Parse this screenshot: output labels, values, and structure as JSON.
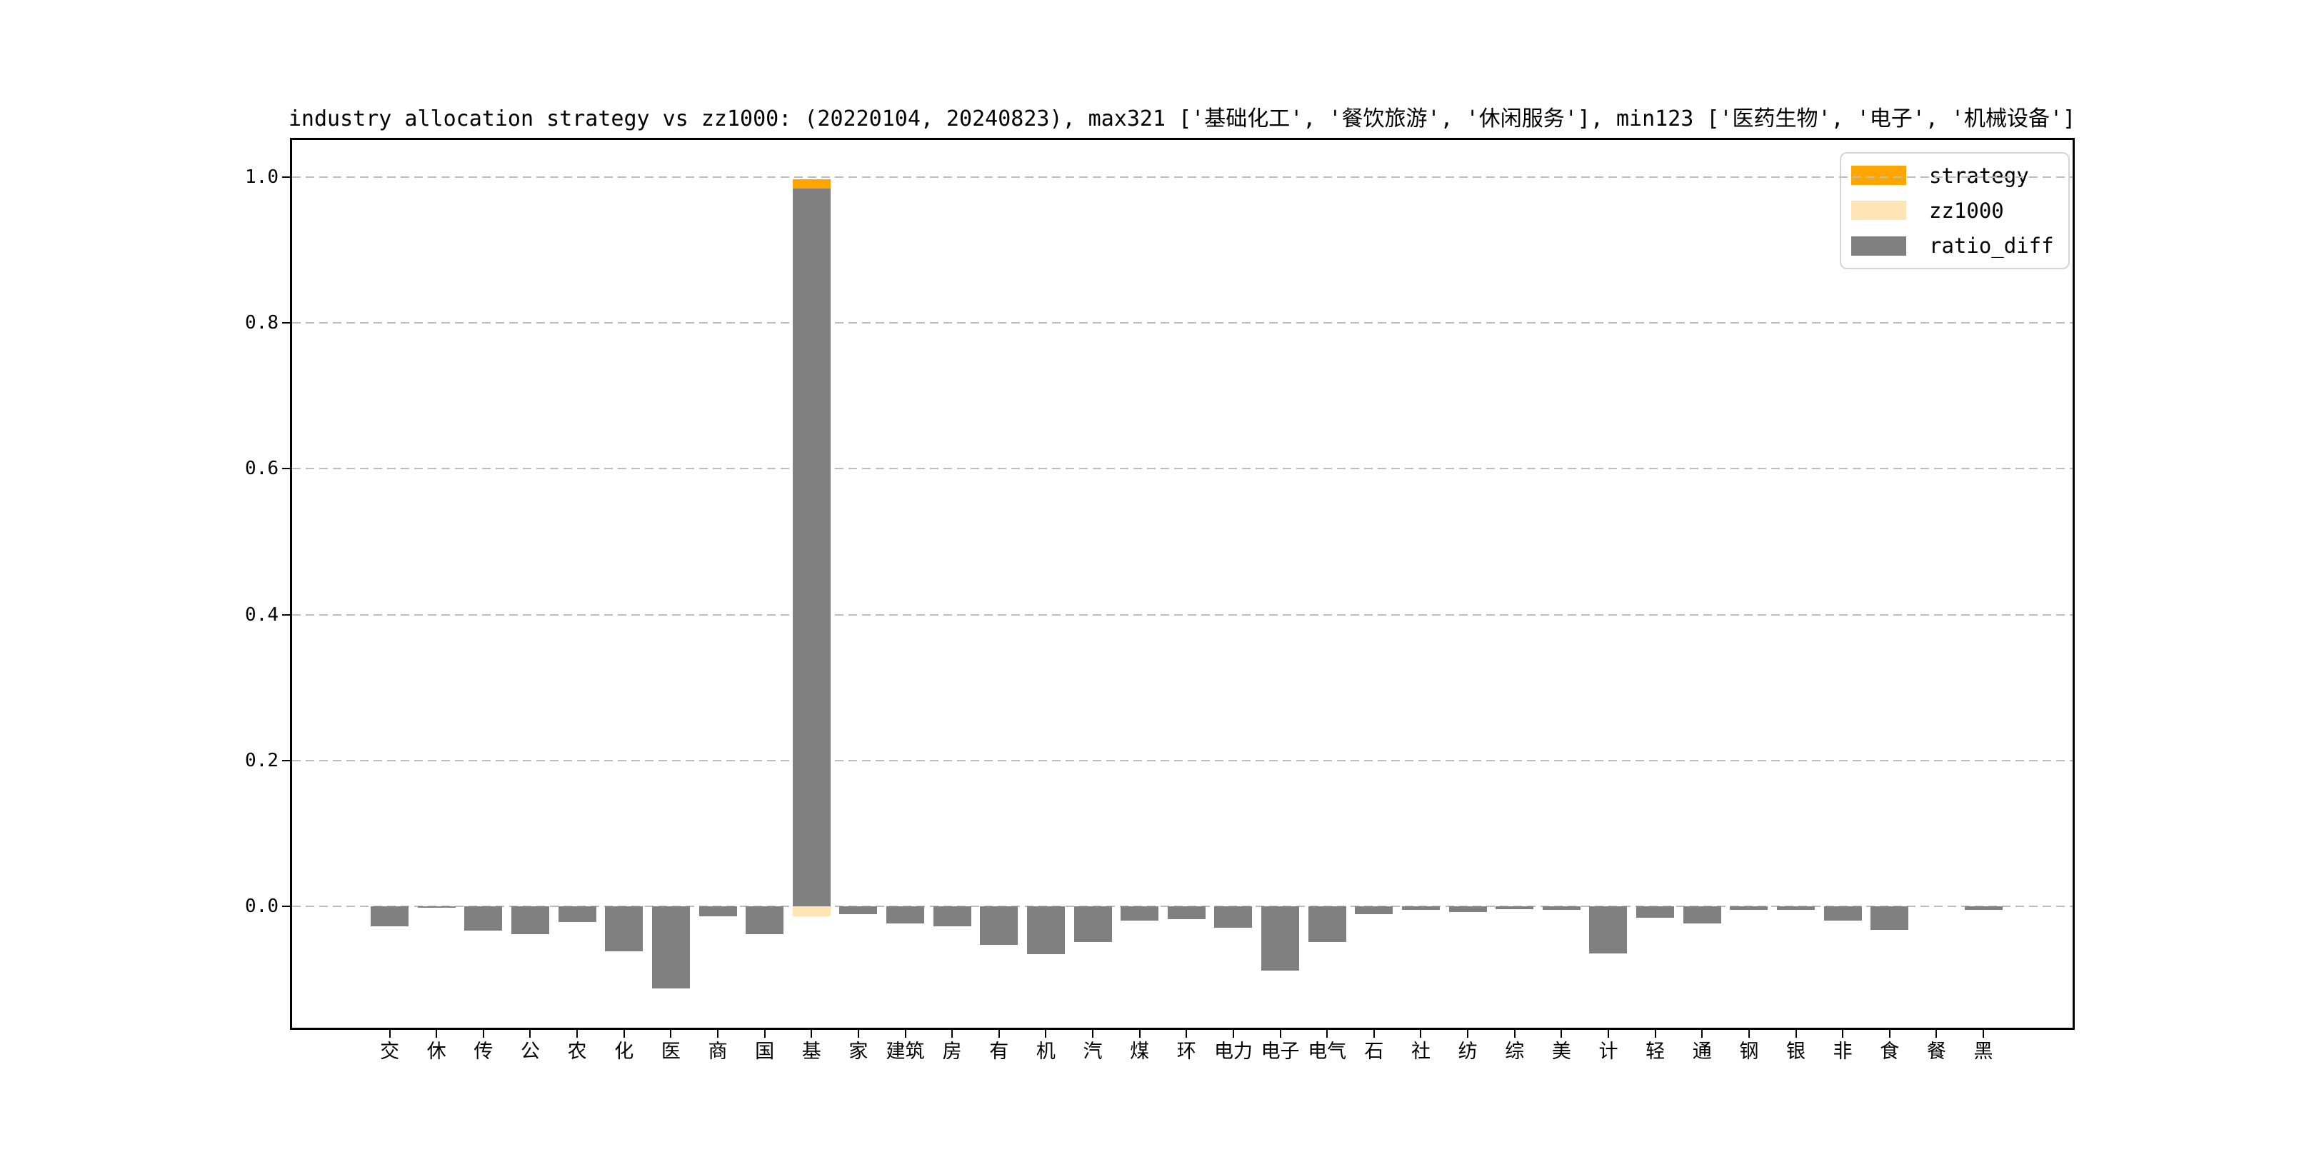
{
  "title": "industry allocation strategy vs zz1000: (20220104, 20240823), max321 ['基础化工', '餐饮旅游', '休闲服务'], min123 ['医药生物', '电子', '机械设备']",
  "legend": [
    {
      "label": "strategy",
      "color": "#FFA500"
    },
    {
      "label": "zz1000",
      "color": "#FFE4B5"
    },
    {
      "label": "ratio_diff",
      "color": "#808080"
    }
  ],
  "y_axis": {
    "tick_labels": [
      "0.0",
      "0.2",
      "0.4",
      "0.6",
      "0.8",
      "1.0"
    ]
  },
  "chart_data": {
    "type": "bar",
    "title": "industry allocation strategy vs zz1000: (20220104, 20240823), max321 ['基础化工', '餐饮旅游', '休闲服务'], min123 ['医药生物', '电子', '机械设备']",
    "categories": [
      "交",
      "休",
      "传",
      "公",
      "农",
      "化",
      "医",
      "商",
      "国",
      "基",
      "家",
      "建筑",
      "房",
      "有",
      "机",
      "汽",
      "煤",
      "环",
      "电力",
      "电子",
      "电气",
      "石",
      "社",
      "纺",
      "综",
      "美",
      "计",
      "轻",
      "通",
      "钢",
      "银",
      "非",
      "食",
      "餐",
      "黑"
    ],
    "series": [
      {
        "name": "strategy",
        "color": "#FFA500",
        "values": [
          0,
          0,
          0,
          0,
          0,
          0,
          0,
          0,
          0,
          0.997,
          0,
          0,
          0,
          0,
          0,
          0,
          0,
          0,
          0,
          0,
          0,
          0,
          0,
          0,
          0,
          0,
          0,
          0,
          0,
          0,
          0,
          0,
          0,
          0,
          0
        ]
      },
      {
        "name": "zz1000",
        "color": "#FFE4B5",
        "values": [
          0,
          0,
          0,
          0,
          0,
          0,
          0,
          0,
          0,
          0.013,
          0,
          0,
          0,
          0,
          0,
          0,
          0,
          0,
          0,
          0,
          0,
          0,
          0,
          0,
          0,
          0,
          0,
          0,
          0,
          0,
          0,
          0,
          0,
          0,
          0
        ]
      },
      {
        "name": "ratio_diff",
        "color": "#808080",
        "values": [
          -0.027,
          -0.002,
          -0.033,
          -0.038,
          -0.021,
          -0.061,
          -0.112,
          -0.013,
          -0.038,
          0.984,
          -0.01,
          -0.023,
          -0.027,
          -0.053,
          -0.065,
          -0.049,
          -0.019,
          -0.017,
          -0.029,
          -0.088,
          -0.049,
          -0.01,
          -0.005,
          -0.008,
          -0.004,
          -0.005,
          -0.064,
          -0.015,
          -0.023,
          -0.005,
          -0.005,
          -0.019,
          -0.032,
          0,
          -0.005
        ]
      }
    ],
    "xlabel": "",
    "ylabel": "",
    "yticks": [
      0.0,
      0.2,
      0.4,
      0.6,
      0.8,
      1.0
    ],
    "ylim": [
      -0.17,
      1.054
    ],
    "grid": "horizontal dashed",
    "legend_position": "upper right",
    "note": "zz1000 bars are drawn downward below zero and ratio_diff overlaps them except at 基; strategy is visible only as the top cap of the 基 bar"
  }
}
